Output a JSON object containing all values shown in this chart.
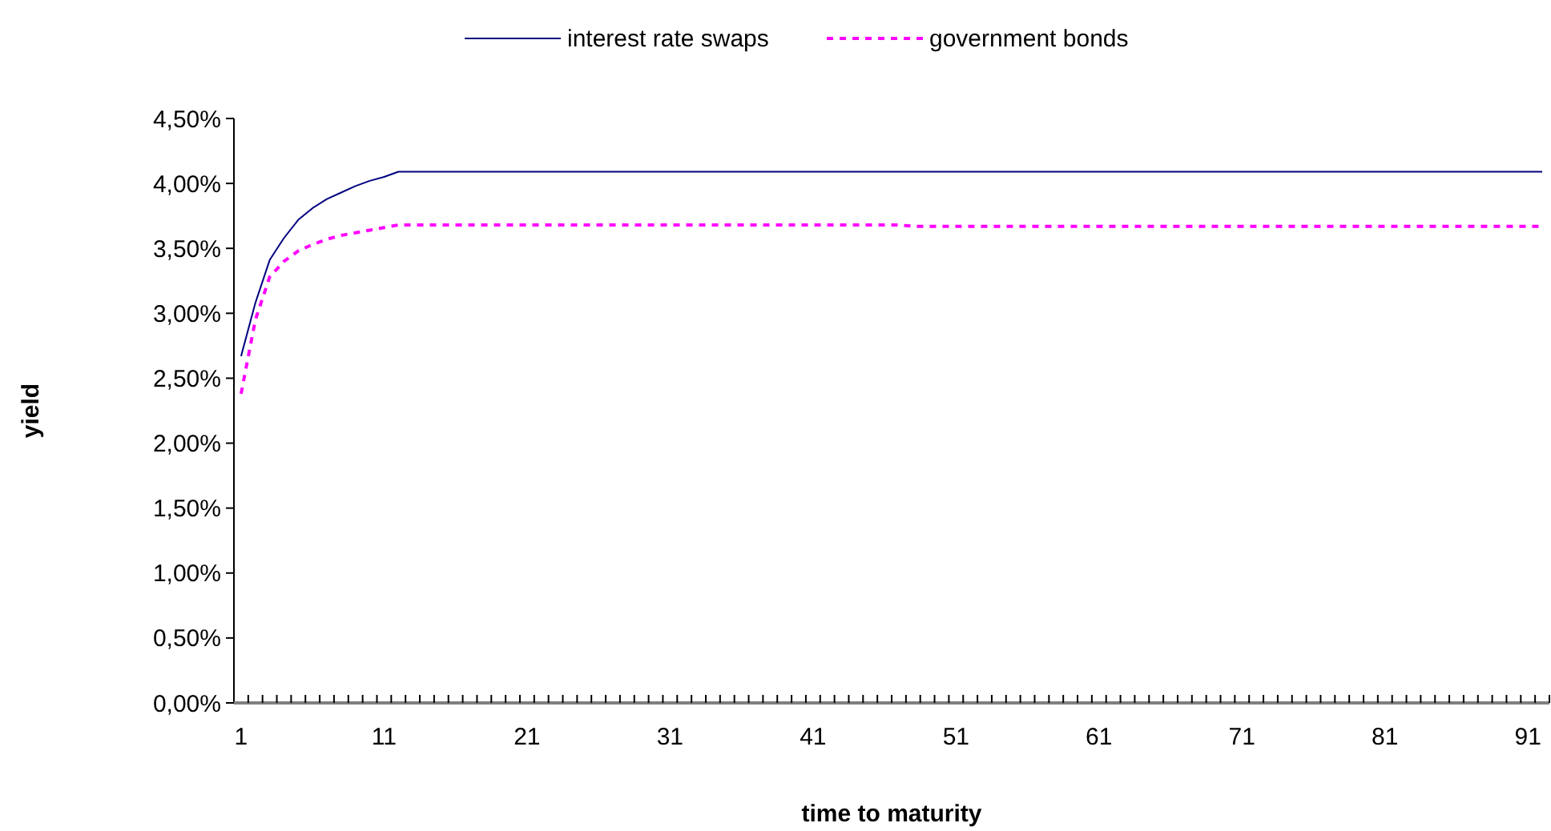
{
  "chart_data": {
    "type": "line",
    "xlabel": "time to maturity",
    "ylabel": "yield",
    "legend": "top",
    "grid": false,
    "marker": "none",
    "categories": [
      "1",
      null,
      null,
      null,
      null,
      null,
      null,
      null,
      null,
      null,
      "11",
      null,
      null,
      null,
      null,
      null,
      null,
      null,
      null,
      null,
      "21",
      null,
      null,
      null,
      null,
      null,
      null,
      null,
      null,
      null,
      "31",
      null,
      null,
      null,
      null,
      null,
      null,
      null,
      null,
      null,
      "41",
      null,
      null,
      null,
      null,
      null,
      null,
      null,
      null,
      null,
      "51",
      null,
      null,
      null,
      null,
      null,
      null,
      null,
      null,
      null,
      "61",
      null,
      null,
      null,
      null,
      null,
      null,
      null,
      null,
      null,
      "71",
      null,
      null,
      null,
      null,
      null,
      null,
      null,
      null,
      null,
      "81",
      null,
      null,
      null,
      null,
      null,
      null,
      null,
      null,
      null,
      "91",
      null
    ],
    "ylim": [
      0,
      4.5
    ],
    "yticks": [
      {
        "value": 0,
        "label": "0,00%"
      },
      {
        "value": 0.5,
        "label": "0,50%"
      },
      {
        "value": 1,
        "label": "1,00%"
      },
      {
        "value": 1.5,
        "label": "1,50%"
      },
      {
        "value": 2,
        "label": "2,00%"
      },
      {
        "value": 2.5,
        "label": "2,50%"
      },
      {
        "value": 3,
        "label": "3,00%"
      },
      {
        "value": 3.5,
        "label": "3,50%"
      },
      {
        "value": 4,
        "label": "4,00%"
      },
      {
        "value": 4.5,
        "label": "4,50%"
      }
    ],
    "series": [
      {
        "name": "interest rate swaps",
        "color": "#000080",
        "line_style": "solid",
        "values": [
          2.67,
          3.08,
          3.41,
          3.58,
          3.72,
          3.81,
          3.88,
          3.93,
          3.98,
          4.02,
          4.05,
          4.09,
          4.09,
          4.09,
          4.09,
          4.09,
          4.09,
          4.09,
          4.09,
          4.09,
          4.09,
          4.09,
          4.09,
          4.09,
          4.09,
          4.09,
          4.09,
          4.09,
          4.09,
          4.09,
          4.09,
          4.09,
          4.09,
          4.09,
          4.09,
          4.09,
          4.09,
          4.09,
          4.09,
          4.09,
          4.09,
          4.09,
          4.09,
          4.09,
          4.09,
          4.09,
          4.09,
          4.09,
          4.09,
          4.09,
          4.09,
          4.09,
          4.09,
          4.09,
          4.09,
          4.09,
          4.09,
          4.09,
          4.09,
          4.09,
          4.09,
          4.09,
          4.09,
          4.09,
          4.09,
          4.09,
          4.09,
          4.09,
          4.09,
          4.09,
          4.09,
          4.09,
          4.09,
          4.09,
          4.09,
          4.09,
          4.09,
          4.09,
          4.09,
          4.09,
          4.09,
          4.09,
          4.09,
          4.09,
          4.09,
          4.09,
          4.09,
          4.09,
          4.09,
          4.09,
          4.09,
          4.09
        ]
      },
      {
        "name": "government bonds",
        "color": "#ff00ff",
        "line_style": "dashed",
        "values": [
          2.38,
          2.95,
          3.28,
          3.4,
          3.48,
          3.53,
          3.57,
          3.6,
          3.62,
          3.64,
          3.66,
          3.68,
          3.68,
          3.68,
          3.68,
          3.68,
          3.68,
          3.68,
          3.68,
          3.68,
          3.68,
          3.68,
          3.68,
          3.68,
          3.68,
          3.68,
          3.68,
          3.68,
          3.68,
          3.68,
          3.68,
          3.68,
          3.68,
          3.68,
          3.68,
          3.68,
          3.68,
          3.68,
          3.68,
          3.68,
          3.68,
          3.68,
          3.68,
          3.68,
          3.68,
          3.68,
          3.68,
          3.67,
          3.67,
          3.67,
          3.67,
          3.67,
          3.67,
          3.67,
          3.67,
          3.67,
          3.67,
          3.67,
          3.67,
          3.67,
          3.67,
          3.67,
          3.67,
          3.67,
          3.67,
          3.67,
          3.67,
          3.67,
          3.67,
          3.67,
          3.67,
          3.67,
          3.67,
          3.67,
          3.67,
          3.67,
          3.67,
          3.67,
          3.67,
          3.67,
          3.67,
          3.67,
          3.67,
          3.67,
          3.67,
          3.67,
          3.67,
          3.67,
          3.67,
          3.67,
          3.67,
          3.67
        ]
      }
    ]
  }
}
